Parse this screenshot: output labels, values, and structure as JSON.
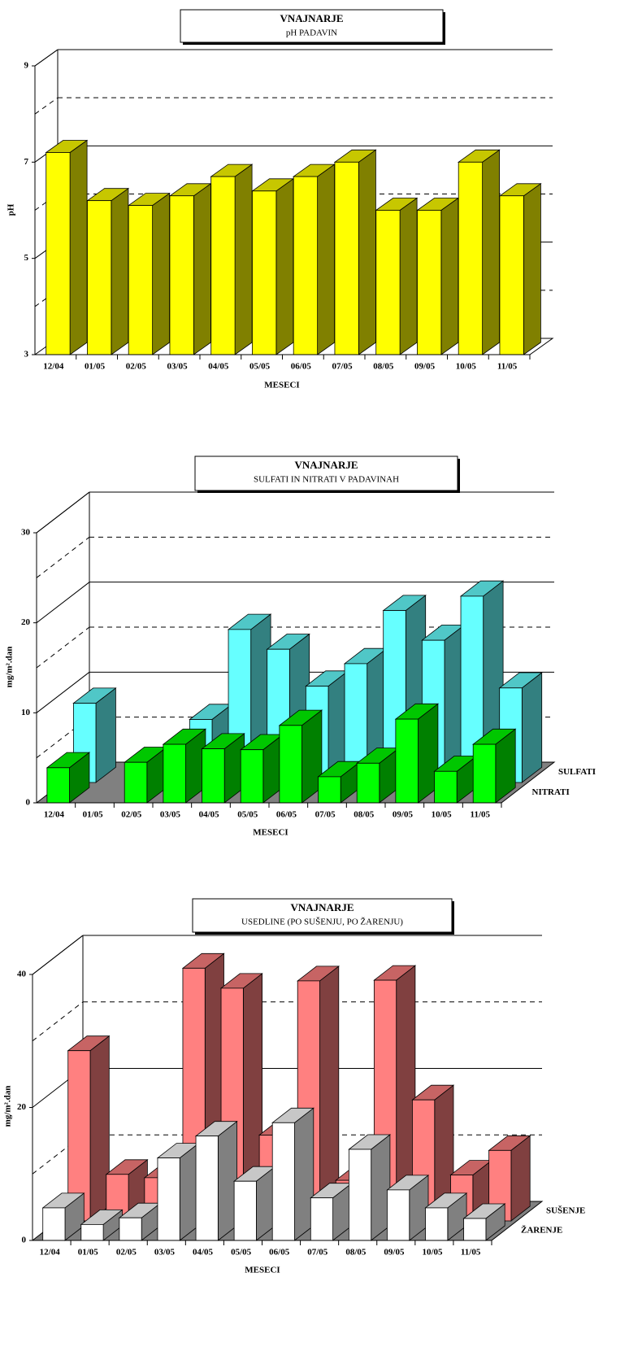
{
  "chart_data": [
    {
      "type": "bar",
      "title": "VNAJNARJE",
      "subtitle": "pH  PADAVIN",
      "xlabel": "MESECI",
      "ylabel": "pH",
      "categories": [
        "12/04",
        "01/05",
        "02/05",
        "03/05",
        "04/05",
        "05/05",
        "06/05",
        "07/05",
        "08/05",
        "09/05",
        "10/05",
        "11/05"
      ],
      "values": [
        7.2,
        6.2,
        6.1,
        6.3,
        6.7,
        6.4,
        6.7,
        7.0,
        6.0,
        6.0,
        7.0,
        6.3
      ],
      "color": "#ffff00",
      "ylim": [
        3,
        9
      ],
      "yticks": [
        3,
        5,
        7,
        9
      ],
      "grid": true
    },
    {
      "type": "bar",
      "title": "VNAJNARJE",
      "subtitle": "SULFATI  IN  NITRATI  V  PADAVINAH",
      "xlabel": "MESECI",
      "ylabel": "mg/m².dan",
      "categories": [
        "12/04",
        "01/05",
        "02/05",
        "03/05",
        "04/05",
        "05/05",
        "06/05",
        "07/05",
        "08/05",
        "09/05",
        "10/05",
        "11/05"
      ],
      "series": [
        {
          "name": "SULFATI",
          "color": "#66ffff",
          "values": [
            8.8,
            null,
            null,
            7.0,
            17.0,
            14.8,
            10.7,
            13.2,
            19.1,
            15.8,
            20.7,
            10.5
          ]
        },
        {
          "name": "NITRATI",
          "color": "#00ff00",
          "values": [
            3.9,
            null,
            4.5,
            6.5,
            6.0,
            5.9,
            8.6,
            2.9,
            4.4,
            9.3,
            3.5,
            6.5
          ]
        }
      ],
      "ylim": [
        0,
        30
      ],
      "yticks": [
        0,
        10,
        20,
        30
      ],
      "grid": true
    },
    {
      "type": "bar",
      "title": "VNAJNARJE",
      "subtitle": "USEDLINE  (PO  SUŠENJU,  PO  ŽARENJU)",
      "xlabel": "MESECI",
      "ylabel": "mg/m².dan",
      "categories": [
        "12/04",
        "01/05",
        "02/05",
        "03/05",
        "04/05",
        "05/05",
        "06/05",
        "07/05",
        "08/05",
        "09/05",
        "10/05",
        "11/05"
      ],
      "series": [
        {
          "name": "SUŠENJE",
          "color": "#ff8080",
          "values": [
            25.6,
            7.0,
            6.5,
            38.0,
            35.0,
            12.9,
            36.1,
            6.1,
            36.2,
            18.2,
            6.9,
            10.6
          ]
        },
        {
          "name": "ŽARENJE",
          "color": "#ffffff",
          "values": [
            4.9,
            2.4,
            3.4,
            12.4,
            15.7,
            8.9,
            17.7,
            6.4,
            13.7,
            7.6,
            4.9,
            3.3
          ]
        }
      ],
      "ylim": [
        0,
        40
      ],
      "yticks": [
        0,
        20,
        40
      ],
      "grid": true
    }
  ]
}
